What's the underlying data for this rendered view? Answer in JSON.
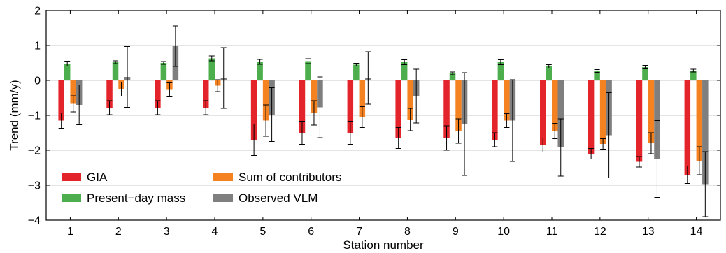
{
  "chart_data": {
    "type": "bar",
    "xlabel": "Station number",
    "ylabel": "Trend (mm/y)",
    "ylim": [
      -4,
      2
    ],
    "yticks": [
      2,
      1,
      0,
      -1,
      -2,
      -3,
      -4
    ],
    "yticklabels": [
      "2",
      "1",
      "0",
      "−1",
      "−2",
      "−3",
      "−4"
    ],
    "grid": "horizontal",
    "legend_position": "bottom-left",
    "categories": [
      "1",
      "2",
      "3",
      "4",
      "5",
      "6",
      "7",
      "8",
      "9",
      "10",
      "11",
      "12",
      "13",
      "14"
    ],
    "series": [
      {
        "name": "GIA",
        "color": "#e3252b",
        "values": [
          -1.15,
          -0.78,
          -0.78,
          -0.78,
          -1.7,
          -1.5,
          -1.5,
          -1.65,
          -1.65,
          -1.7,
          -1.85,
          -2.1,
          -2.33,
          -2.7
        ],
        "errors": [
          0.22,
          0.2,
          0.2,
          0.2,
          0.45,
          0.33,
          0.33,
          0.3,
          0.35,
          0.2,
          0.2,
          0.15,
          0.15,
          0.25
        ]
      },
      {
        "name": "Present−day mass",
        "color": "#4cae4c",
        "values": [
          0.48,
          0.52,
          0.5,
          0.63,
          0.53,
          0.55,
          0.45,
          0.52,
          0.2,
          0.52,
          0.4,
          0.27,
          0.38,
          0.28
        ],
        "errors": [
          0.07,
          0.04,
          0.04,
          0.07,
          0.07,
          0.07,
          0.04,
          0.07,
          0.04,
          0.07,
          0.05,
          0.04,
          0.05,
          0.04
        ]
      },
      {
        "name": "Sum of contributors",
        "color": "#f48220",
        "values": [
          -0.67,
          -0.25,
          -0.27,
          -0.15,
          -1.15,
          -0.93,
          -1.05,
          -1.12,
          -1.45,
          -1.15,
          -1.45,
          -1.82,
          -1.8,
          -2.3
        ],
        "errors": [
          0.23,
          0.2,
          0.2,
          0.17,
          0.45,
          0.35,
          0.3,
          0.32,
          0.35,
          0.2,
          0.22,
          0.15,
          0.3,
          0.4
        ]
      },
      {
        "name": "Observed VLM",
        "color": "#7f7f7f",
        "values": [
          -0.7,
          0.1,
          0.98,
          0.07,
          -0.98,
          -0.77,
          0.07,
          -0.45,
          -1.25,
          -1.15,
          -1.92,
          -1.57,
          -2.25,
          -2.97
        ],
        "errors": [
          0.57,
          0.87,
          0.58,
          0.87,
          0.77,
          0.87,
          0.75,
          0.77,
          1.47,
          1.17,
          0.82,
          1.22,
          1.1,
          0.93
        ]
      }
    ],
    "legend": [
      {
        "label": "GIA",
        "series": 0
      },
      {
        "label": "Sum of contributors",
        "series": 2
      },
      {
        "label": "Present−day mass",
        "series": 1
      },
      {
        "label": "Observed VLM",
        "series": 3
      }
    ]
  }
}
